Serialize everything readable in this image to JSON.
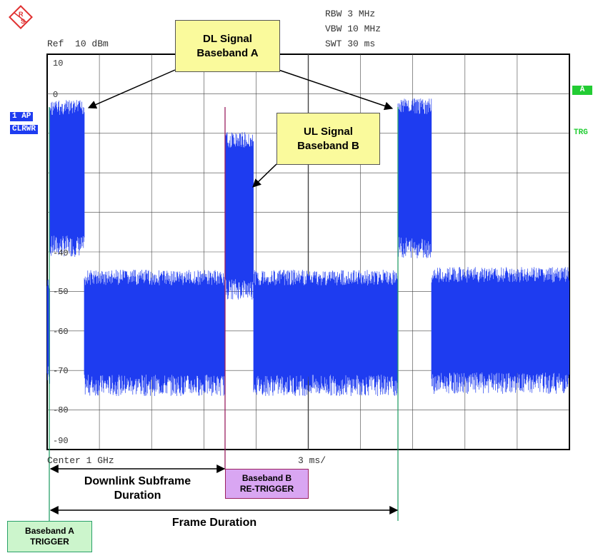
{
  "header": {
    "ref_label": "Ref",
    "ref_value": "10 dBm",
    "rbw_label": "RBW",
    "rbw_value": "3 MHz",
    "vbw_label": "VBW",
    "vbw_value": "10 MHz",
    "swt_label": "SWT",
    "swt_value": "30 ms"
  },
  "left_badges": {
    "trace": "1 AP",
    "mode": "CLRWR"
  },
  "right_badges": {
    "a": "A",
    "trg": "TRG"
  },
  "footer": {
    "center": "Center 1 GHz",
    "span": "3 ms/"
  },
  "y_axis_ticks": [
    "10",
    "0",
    "-40",
    "-50",
    "-60",
    "-70",
    "-80",
    "-90"
  ],
  "callouts": {
    "dl_signal_line1": "DL Signal",
    "dl_signal_line2": "Baseband A",
    "ul_signal_line1": "UL Signal",
    "ul_signal_line2": "Baseband B"
  },
  "triggers": {
    "a_line1": "Baseband A",
    "a_line2": "TRIGGER",
    "b_line1": "Baseband B",
    "b_line2": "RE-TRIGGER"
  },
  "durations": {
    "downlink_line1": "Downlink Subframe",
    "downlink_line2": "Duration",
    "frame": "Frame Duration"
  },
  "colors": {
    "trace": "#1e3cf0",
    "badge_bg": "#1e3cf0",
    "status_green": "#22cc33",
    "callout_bg": "#fafa9c",
    "trigger_a_bg": "#ccf5cc",
    "trigger_b_bg": "#d9a6f2",
    "trigger_a_line": "#2aa06a",
    "trigger_b_line": "#9a2060"
  }
}
